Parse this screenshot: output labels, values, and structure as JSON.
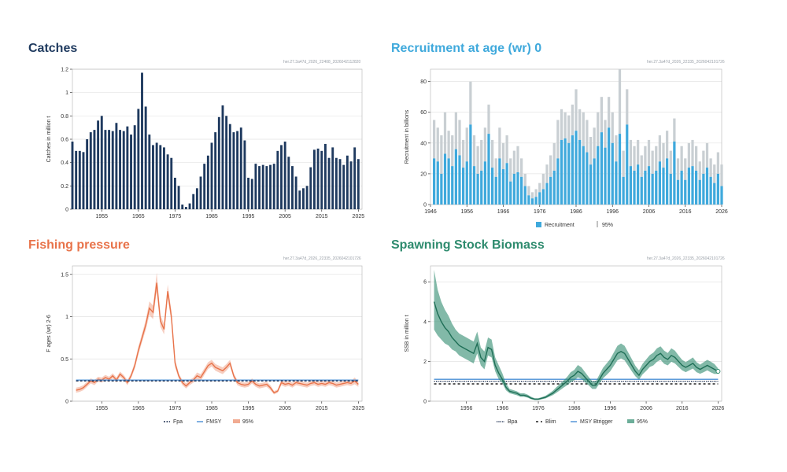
{
  "colors": {
    "catches": "#1f3a5f",
    "recruitment": "#3fa9dc",
    "fishing": "#e8734a",
    "ssb": "#2e8b6e"
  },
  "panels": {
    "catches": {
      "title": "Catches",
      "stamp": "her.27.3a47d_2026_22408_2026042112820"
    },
    "recruitment": {
      "title": "Recruitment at age (wr) 0",
      "stamp": "her.27.3a47d_2026_22335_2026042101726"
    },
    "fishing": {
      "title": "Fishing pressure",
      "stamp": "her.27.3a47d_2026_22335_2026042101726"
    },
    "ssb": {
      "title": "Spawning Stock Biomass",
      "stamp": "her.27.3a47d_2026_22335_2026042101726"
    }
  },
  "chart_data": [
    {
      "id": "catches",
      "type": "bar",
      "title": "Catches",
      "ylabel": "Catches in million t",
      "ylim": [
        0,
        1.2
      ],
      "yticks": [
        0,
        0.2,
        0.4,
        0.6,
        0.8,
        1,
        1.2
      ],
      "xticks": [
        1955,
        1965,
        1975,
        1985,
        1995,
        2005,
        2015,
        2025
      ],
      "x_range": [
        1947,
        2026
      ],
      "grid": true,
      "years": [
        1947,
        1948,
        1949,
        1950,
        1951,
        1952,
        1953,
        1954,
        1955,
        1956,
        1957,
        1958,
        1959,
        1960,
        1961,
        1962,
        1963,
        1964,
        1965,
        1966,
        1967,
        1968,
        1969,
        1970,
        1971,
        1972,
        1973,
        1974,
        1975,
        1976,
        1977,
        1978,
        1979,
        1980,
        1981,
        1982,
        1983,
        1984,
        1985,
        1986,
        1987,
        1988,
        1989,
        1990,
        1991,
        1992,
        1993,
        1994,
        1995,
        1996,
        1997,
        1998,
        1999,
        2000,
        2001,
        2002,
        2003,
        2004,
        2005,
        2006,
        2007,
        2008,
        2009,
        2010,
        2011,
        2012,
        2013,
        2014,
        2015,
        2016,
        2017,
        2018,
        2019,
        2020,
        2021,
        2022,
        2023,
        2024,
        2025
      ],
      "values": [
        0.58,
        0.5,
        0.5,
        0.49,
        0.6,
        0.66,
        0.68,
        0.76,
        0.8,
        0.68,
        0.68,
        0.67,
        0.74,
        0.68,
        0.67,
        0.71,
        0.64,
        0.72,
        0.86,
        1.17,
        0.88,
        0.64,
        0.55,
        0.57,
        0.55,
        0.53,
        0.47,
        0.44,
        0.27,
        0.2,
        0.04,
        0.02,
        0.05,
        0.13,
        0.18,
        0.28,
        0.39,
        0.46,
        0.57,
        0.66,
        0.79,
        0.89,
        0.8,
        0.73,
        0.66,
        0.67,
        0.7,
        0.59,
        0.27,
        0.26,
        0.39,
        0.37,
        0.38,
        0.37,
        0.38,
        0.39,
        0.5,
        0.55,
        0.58,
        0.45,
        0.37,
        0.28,
        0.16,
        0.18,
        0.2,
        0.36,
        0.51,
        0.52,
        0.5,
        0.56,
        0.44,
        0.53,
        0.44,
        0.43,
        0.38,
        0.46,
        0.41,
        0.53,
        0.43
      ]
    },
    {
      "id": "recruitment",
      "type": "bar",
      "title": "Recruitment at age (wr) 0",
      "ylabel": "Recruitment in billions",
      "ylim": [
        0,
        88
      ],
      "yticks": [
        0,
        20,
        40,
        60,
        80
      ],
      "xticks": [
        1946,
        1956,
        1966,
        1976,
        1986,
        1996,
        2006,
        2016,
        2026
      ],
      "x_range": [
        1946,
        2026
      ],
      "grid": true,
      "legend": [
        "Recruitment",
        "95%"
      ],
      "years": [
        1947,
        1948,
        1949,
        1950,
        1951,
        1952,
        1953,
        1954,
        1955,
        1956,
        1957,
        1958,
        1959,
        1960,
        1961,
        1962,
        1963,
        1964,
        1965,
        1966,
        1967,
        1968,
        1969,
        1970,
        1971,
        1972,
        1973,
        1974,
        1975,
        1976,
        1977,
        1978,
        1979,
        1980,
        1981,
        1982,
        1983,
        1984,
        1985,
        1986,
        1987,
        1988,
        1989,
        1990,
        1991,
        1992,
        1993,
        1994,
        1995,
        1996,
        1997,
        1998,
        1999,
        2000,
        2001,
        2002,
        2003,
        2004,
        2005,
        2006,
        2007,
        2008,
        2009,
        2010,
        2011,
        2012,
        2013,
        2014,
        2015,
        2016,
        2017,
        2018,
        2019,
        2020,
        2021,
        2022,
        2023,
        2024,
        2025,
        2026
      ],
      "values": [
        30,
        28,
        20,
        33,
        30,
        25,
        36,
        32,
        24,
        28,
        52,
        25,
        20,
        22,
        28,
        46,
        24,
        18,
        30,
        23,
        27,
        15,
        20,
        21,
        18,
        12,
        6,
        4,
        5,
        8,
        10,
        14,
        18,
        22,
        30,
        42,
        43,
        40,
        45,
        48,
        42,
        38,
        34,
        26,
        30,
        38,
        47,
        37,
        50,
        40,
        28,
        46,
        18,
        52,
        25,
        22,
        26,
        18,
        22,
        25,
        20,
        22,
        28,
        24,
        30,
        20,
        41,
        16,
        22,
        16,
        24,
        25,
        22,
        16,
        20,
        24,
        18,
        14,
        20,
        12
      ],
      "upper": [
        55,
        50,
        45,
        60,
        48,
        45,
        60,
        55,
        42,
        50,
        80,
        45,
        38,
        42,
        50,
        65,
        42,
        30,
        50,
        40,
        45,
        30,
        35,
        38,
        30,
        20,
        12,
        8,
        10,
        14,
        20,
        26,
        32,
        40,
        55,
        62,
        60,
        58,
        65,
        75,
        62,
        60,
        55,
        44,
        50,
        60,
        70,
        55,
        70,
        60,
        45,
        88,
        35,
        75,
        42,
        38,
        42,
        32,
        38,
        42,
        35,
        38,
        45,
        40,
        48,
        35,
        56,
        30,
        38,
        30,
        40,
        42,
        38,
        28,
        35,
        40,
        30,
        26,
        34,
        26
      ]
    },
    {
      "id": "fishing",
      "type": "line",
      "title": "Fishing pressure",
      "ylabel": "F ages (wr) 2-6",
      "ylim": [
        0,
        1.6
      ],
      "yticks": [
        0,
        0.5,
        1,
        1.5
      ],
      "xticks": [
        1955,
        1965,
        1975,
        1985,
        1995,
        2005,
        2015,
        2025
      ],
      "x_range": [
        1947,
        2026
      ],
      "grid": true,
      "legend": [
        "Fpa",
        "FMSY",
        "95%"
      ],
      "reference_lines": [
        {
          "name": "Fpa",
          "value": 0.24
        },
        {
          "name": "FMSY",
          "value": 0.25
        }
      ],
      "x": [
        1948,
        1949,
        1950,
        1951,
        1952,
        1953,
        1954,
        1955,
        1956,
        1957,
        1958,
        1959,
        1960,
        1961,
        1962,
        1963,
        1964,
        1965,
        1966,
        1967,
        1968,
        1969,
        1970,
        1971,
        1972,
        1973,
        1974,
        1975,
        1976,
        1977,
        1978,
        1979,
        1980,
        1981,
        1982,
        1983,
        1984,
        1985,
        1986,
        1987,
        1988,
        1989,
        1990,
        1991,
        1992,
        1993,
        1994,
        1995,
        1996,
        1997,
        1998,
        1999,
        2000,
        2001,
        2002,
        2003,
        2004,
        2005,
        2006,
        2007,
        2008,
        2009,
        2010,
        2011,
        2012,
        2013,
        2014,
        2015,
        2016,
        2017,
        2018,
        2019,
        2020,
        2021,
        2022,
        2023,
        2024,
        2025
      ],
      "values": [
        0.13,
        0.14,
        0.16,
        0.2,
        0.24,
        0.22,
        0.26,
        0.25,
        0.28,
        0.26,
        0.3,
        0.25,
        0.32,
        0.28,
        0.22,
        0.3,
        0.42,
        0.6,
        0.75,
        0.9,
        1.1,
        1.05,
        1.4,
        0.95,
        0.85,
        1.3,
        1.0,
        0.45,
        0.3,
        0.22,
        0.18,
        0.22,
        0.25,
        0.3,
        0.28,
        0.35,
        0.42,
        0.45,
        0.4,
        0.38,
        0.36,
        0.4,
        0.45,
        0.3,
        0.22,
        0.2,
        0.19,
        0.2,
        0.24,
        0.2,
        0.18,
        0.19,
        0.2,
        0.16,
        0.1,
        0.12,
        0.22,
        0.2,
        0.21,
        0.19,
        0.22,
        0.21,
        0.2,
        0.19,
        0.21,
        0.22,
        0.2,
        0.21,
        0.2,
        0.22,
        0.21,
        0.19,
        0.2,
        0.21,
        0.22,
        0.21,
        0.24,
        0.2
      ],
      "lower": [
        0.1,
        0.11,
        0.13,
        0.17,
        0.21,
        0.19,
        0.23,
        0.22,
        0.25,
        0.23,
        0.27,
        0.22,
        0.29,
        0.25,
        0.19,
        0.27,
        0.38,
        0.55,
        0.7,
        0.84,
        1.02,
        0.97,
        1.3,
        0.88,
        0.79,
        1.22,
        0.93,
        0.4,
        0.27,
        0.19,
        0.15,
        0.19,
        0.22,
        0.26,
        0.24,
        0.31,
        0.38,
        0.41,
        0.36,
        0.34,
        0.32,
        0.36,
        0.41,
        0.27,
        0.19,
        0.17,
        0.16,
        0.17,
        0.21,
        0.17,
        0.15,
        0.16,
        0.17,
        0.13,
        0.08,
        0.1,
        0.19,
        0.17,
        0.18,
        0.16,
        0.19,
        0.18,
        0.17,
        0.16,
        0.18,
        0.19,
        0.17,
        0.18,
        0.17,
        0.19,
        0.18,
        0.16,
        0.17,
        0.18,
        0.19,
        0.18,
        0.2,
        0.17
      ],
      "upper": [
        0.16,
        0.17,
        0.19,
        0.23,
        0.27,
        0.25,
        0.29,
        0.28,
        0.31,
        0.29,
        0.33,
        0.28,
        0.35,
        0.31,
        0.25,
        0.33,
        0.46,
        0.65,
        0.8,
        0.96,
        1.18,
        1.13,
        1.52,
        1.02,
        0.91,
        1.38,
        1.07,
        0.5,
        0.33,
        0.25,
        0.21,
        0.25,
        0.28,
        0.34,
        0.32,
        0.39,
        0.46,
        0.49,
        0.44,
        0.42,
        0.4,
        0.44,
        0.49,
        0.33,
        0.25,
        0.23,
        0.22,
        0.23,
        0.27,
        0.23,
        0.21,
        0.22,
        0.23,
        0.19,
        0.12,
        0.14,
        0.25,
        0.23,
        0.24,
        0.22,
        0.25,
        0.24,
        0.23,
        0.22,
        0.24,
        0.25,
        0.23,
        0.24,
        0.23,
        0.25,
        0.24,
        0.22,
        0.23,
        0.24,
        0.25,
        0.24,
        0.28,
        0.23
      ]
    },
    {
      "id": "ssb",
      "type": "line",
      "title": "Spawning Stock Biomass",
      "ylabel": "SSB in million t",
      "ylim": [
        0,
        6.8
      ],
      "yticks": [
        0,
        2,
        4,
        6
      ],
      "xticks": [
        1956,
        1966,
        1976,
        1986,
        1996,
        2006,
        2016,
        2026
      ],
      "x_range": [
        1946,
        2027
      ],
      "grid": true,
      "legend": [
        "Bpa",
        "Blim",
        "MSY Btrigger",
        "95%"
      ],
      "reference_lines": [
        {
          "name": "Bpa",
          "value": 1.0
        },
        {
          "name": "Blim",
          "value": 0.87
        },
        {
          "name": "MSY Btrigger",
          "value": 1.1
        }
      ],
      "x": [
        1947,
        1948,
        1949,
        1950,
        1951,
        1952,
        1953,
        1954,
        1955,
        1956,
        1957,
        1958,
        1959,
        1960,
        1961,
        1962,
        1963,
        1964,
        1965,
        1966,
        1967,
        1968,
        1969,
        1970,
        1971,
        1972,
        1973,
        1974,
        1975,
        1976,
        1977,
        1978,
        1979,
        1980,
        1981,
        1982,
        1983,
        1984,
        1985,
        1986,
        1987,
        1988,
        1989,
        1990,
        1991,
        1992,
        1993,
        1994,
        1995,
        1996,
        1997,
        1998,
        1999,
        2000,
        2001,
        2002,
        2003,
        2004,
        2005,
        2006,
        2007,
        2008,
        2009,
        2010,
        2011,
        2012,
        2013,
        2014,
        2015,
        2016,
        2017,
        2018,
        2019,
        2020,
        2021,
        2022,
        2023,
        2024,
        2025,
        2026
      ],
      "values": [
        5.0,
        4.4,
        4.0,
        3.7,
        3.5,
        3.2,
        3.0,
        2.8,
        2.7,
        2.6,
        2.5,
        2.4,
        2.9,
        2.2,
        2.0,
        2.7,
        2.6,
        1.8,
        1.4,
        1.1,
        0.7,
        0.5,
        0.45,
        0.4,
        0.3,
        0.3,
        0.25,
        0.15,
        0.1,
        0.1,
        0.15,
        0.2,
        0.3,
        0.4,
        0.55,
        0.7,
        0.85,
        1.0,
        1.2,
        1.3,
        1.5,
        1.4,
        1.2,
        1.0,
        0.8,
        0.8,
        1.1,
        1.4,
        1.6,
        1.8,
        2.1,
        2.4,
        2.5,
        2.4,
        2.1,
        1.8,
        1.5,
        1.3,
        1.6,
        1.8,
        2.0,
        2.1,
        2.3,
        2.4,
        2.2,
        2.1,
        2.3,
        2.2,
        2.0,
        1.8,
        1.7,
        1.8,
        1.9,
        1.7,
        1.6,
        1.7,
        1.8,
        1.7,
        1.6,
        1.5
      ],
      "lower": [
        3.6,
        3.3,
        3.1,
        2.9,
        2.8,
        2.6,
        2.5,
        2.3,
        2.2,
        2.1,
        2.0,
        1.9,
        2.4,
        1.8,
        1.6,
        2.3,
        2.2,
        1.5,
        1.1,
        0.9,
        0.55,
        0.4,
        0.35,
        0.3,
        0.22,
        0.22,
        0.18,
        0.1,
        0.06,
        0.06,
        0.1,
        0.14,
        0.22,
        0.3,
        0.42,
        0.55,
        0.68,
        0.8,
        0.95,
        1.05,
        1.2,
        1.12,
        0.95,
        0.8,
        0.62,
        0.62,
        0.88,
        1.15,
        1.32,
        1.5,
        1.78,
        2.05,
        2.15,
        2.05,
        1.78,
        1.5,
        1.25,
        1.08,
        1.35,
        1.52,
        1.72,
        1.8,
        1.98,
        2.08,
        1.88,
        1.8,
        1.98,
        1.9,
        1.72,
        1.55,
        1.46,
        1.55,
        1.64,
        1.46,
        1.38,
        1.46,
        1.55,
        1.45,
        1.37,
        1.38
      ],
      "upper": [
        6.6,
        5.6,
        5.0,
        4.6,
        4.3,
        3.9,
        3.6,
        3.4,
        3.3,
        3.2,
        3.1,
        3.0,
        3.5,
        2.7,
        2.5,
        3.2,
        3.1,
        2.2,
        1.8,
        1.4,
        0.9,
        0.62,
        0.56,
        0.5,
        0.4,
        0.4,
        0.33,
        0.22,
        0.15,
        0.15,
        0.21,
        0.27,
        0.39,
        0.52,
        0.7,
        0.87,
        1.04,
        1.22,
        1.46,
        1.57,
        1.82,
        1.7,
        1.46,
        1.22,
        1.0,
        1.0,
        1.34,
        1.68,
        1.9,
        2.12,
        2.45,
        2.78,
        2.9,
        2.78,
        2.45,
        2.12,
        1.78,
        1.55,
        1.88,
        2.1,
        2.32,
        2.44,
        2.66,
        2.76,
        2.54,
        2.42,
        2.66,
        2.54,
        2.3,
        2.08,
        1.96,
        2.08,
        2.2,
        1.96,
        1.84,
        1.96,
        2.08,
        1.98,
        1.87,
        1.65
      ]
    }
  ]
}
